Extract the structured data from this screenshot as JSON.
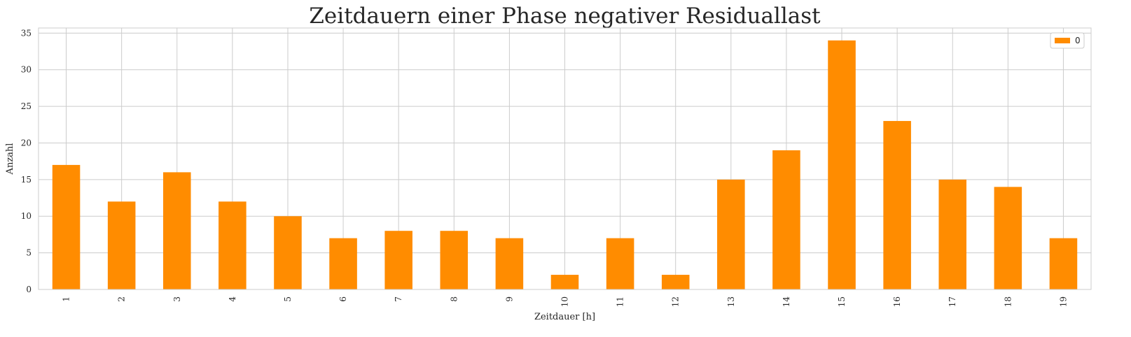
{
  "chart_data": {
    "type": "bar",
    "title": "Zeitdauern einer Phase negativer Residuallast",
    "xlabel": "Zeitdauer [h]",
    "ylabel": "Anzahl",
    "categories": [
      "1",
      "2",
      "3",
      "4",
      "5",
      "6",
      "7",
      "8",
      "9",
      "10",
      "11",
      "12",
      "13",
      "14",
      "15",
      "16",
      "17",
      "18",
      "19"
    ],
    "series": [
      {
        "name": "0",
        "values": [
          17,
          12,
          16,
          12,
          10,
          7,
          8,
          8,
          7,
          2,
          7,
          2,
          15,
          19,
          34,
          23,
          15,
          14,
          7
        ],
        "color": "#ff8c00"
      }
    ],
    "ylim": [
      0,
      35.7
    ],
    "yticks": [
      0,
      5,
      10,
      15,
      20,
      25,
      30,
      35
    ],
    "grid": true,
    "legend": "top-right",
    "colors": {
      "grid": "#cccccc",
      "axes_edge": "#cccccc",
      "text": "#262626",
      "background": "#ffffff"
    }
  }
}
